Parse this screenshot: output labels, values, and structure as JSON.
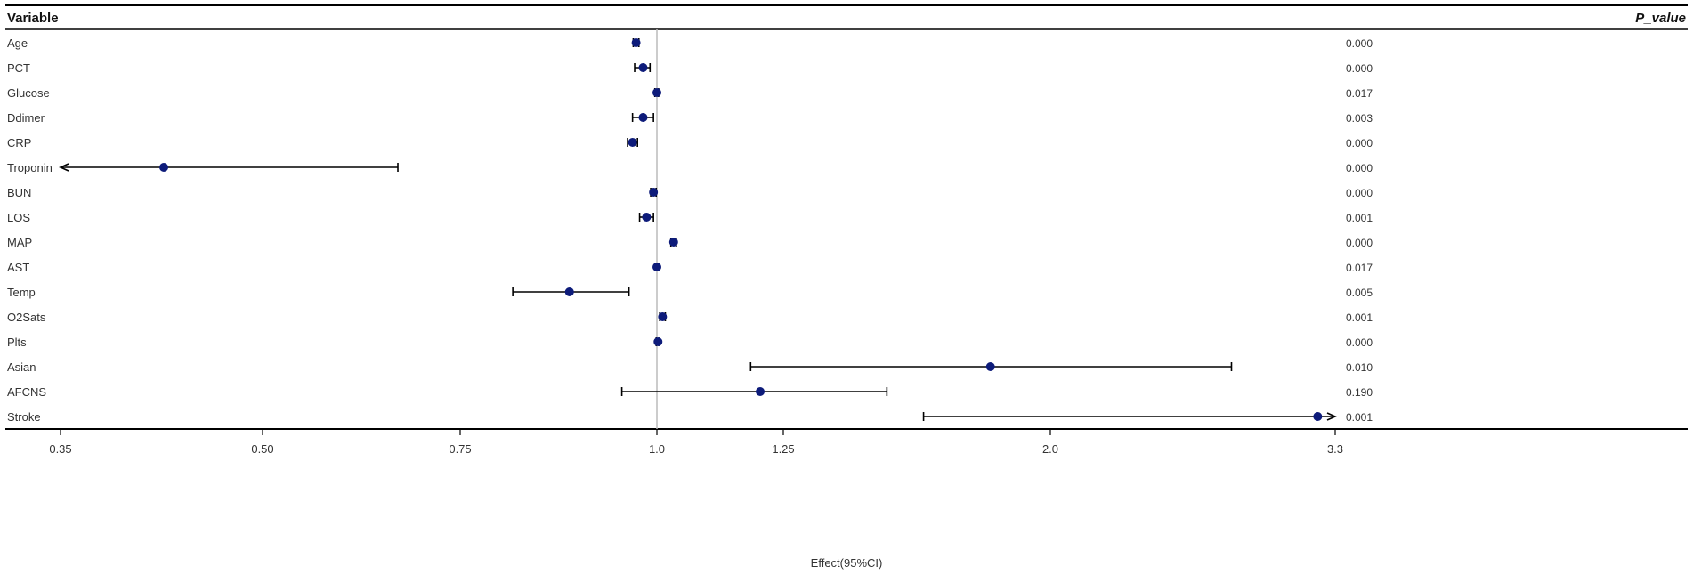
{
  "header": {
    "variable_label": "Variable",
    "pvalue_label": "P_value"
  },
  "chart_data": {
    "type": "forest",
    "xlabel": "Effect(95%CI)",
    "reference_line": "1.0",
    "x_scale": "log",
    "x_ticks": [
      "0.35",
      "0.50",
      "0.75",
      "1.0",
      "1.25",
      "2.0",
      "3.3"
    ],
    "colors": {
      "point": "#0d1b7a",
      "whisker": "#000000",
      "reference": "#bbbbbb"
    },
    "rows": [
      {
        "variable": "Age",
        "estimate": 0.97,
        "lower": 0.966,
        "upper": 0.974,
        "p_value": "0.000"
      },
      {
        "variable": "PCT",
        "estimate": 0.98,
        "lower": 0.968,
        "upper": 0.99,
        "p_value": "0.000"
      },
      {
        "variable": "Glucose",
        "estimate": 1.0,
        "lower": 0.997,
        "upper": 1.003,
        "p_value": "0.017"
      },
      {
        "variable": "Ddimer",
        "estimate": 0.98,
        "lower": 0.965,
        "upper": 0.995,
        "p_value": "0.003"
      },
      {
        "variable": "CRP",
        "estimate": 0.965,
        "lower": 0.958,
        "upper": 0.972,
        "p_value": "0.000"
      },
      {
        "variable": "Troponin",
        "estimate": 0.42,
        "lower": 0.35,
        "upper": 0.66,
        "p_value": "0.000",
        "lower_arrow": true
      },
      {
        "variable": "BUN",
        "estimate": 0.995,
        "lower": 0.991,
        "upper": 0.999,
        "p_value": "0.000"
      },
      {
        "variable": "LOS",
        "estimate": 0.985,
        "lower": 0.975,
        "upper": 0.995,
        "p_value": "0.001"
      },
      {
        "variable": "MAP",
        "estimate": 1.03,
        "lower": 1.025,
        "upper": 1.035,
        "p_value": "0.000"
      },
      {
        "variable": "AST",
        "estimate": 1.0,
        "lower": 0.997,
        "upper": 1.003,
        "p_value": "0.017"
      },
      {
        "variable": "Temp",
        "estimate": 0.88,
        "lower": 0.81,
        "upper": 0.96,
        "p_value": "0.005"
      },
      {
        "variable": "O2Sats",
        "estimate": 1.01,
        "lower": 1.005,
        "upper": 1.015,
        "p_value": "0.001"
      },
      {
        "variable": "Plts",
        "estimate": 1.002,
        "lower": 0.999,
        "upper": 1.005,
        "p_value": "0.000"
      },
      {
        "variable": "Asian",
        "estimate": 1.8,
        "lower": 1.18,
        "upper": 2.75,
        "p_value": "0.010"
      },
      {
        "variable": "AFCNS",
        "estimate": 1.2,
        "lower": 0.95,
        "upper": 1.5,
        "p_value": "0.190"
      },
      {
        "variable": "Stroke",
        "estimate": 3.2,
        "lower": 1.6,
        "upper": 3.3,
        "p_value": "0.001",
        "upper_arrow": true
      }
    ]
  }
}
